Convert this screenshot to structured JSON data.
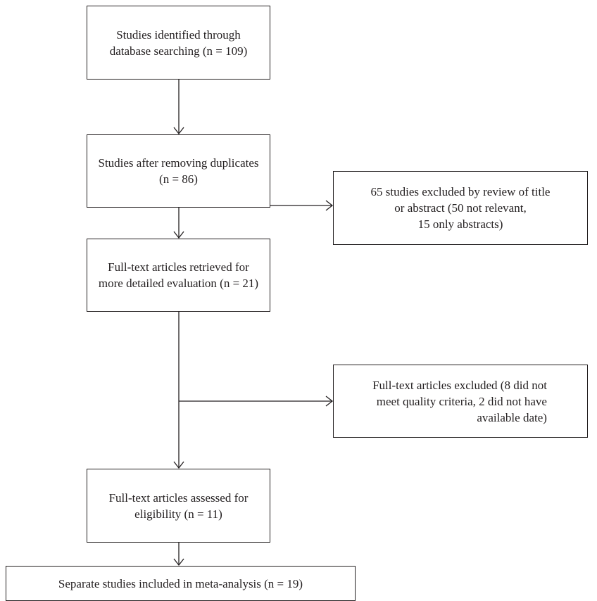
{
  "flowchart": {
    "steps": [
      {
        "line1": "Studies identified through",
        "line2": "database searching (n = 109)"
      },
      {
        "line1": "Studies after removing duplicates",
        "line2": "(n = 86)"
      },
      {
        "line1": "Full-text articles retrieved for",
        "line2": "more detailed evaluation (n = 21)"
      },
      {
        "line1": "Full-text articles assessed for",
        "line2": "eligibility (n = 11)"
      },
      {
        "line1": "Separate studies included in meta-analysis (n = 19)"
      }
    ],
    "exclusions": [
      {
        "line1": "65 studies excluded by review of title",
        "line2": "or abstract (50 not relevant,",
        "line3": "15 only abstracts)"
      },
      {
        "line1": "Full-text articles excluded (8 did not",
        "line2": "meet quality criteria, 2 did not have",
        "line3": "available date)"
      }
    ]
  }
}
